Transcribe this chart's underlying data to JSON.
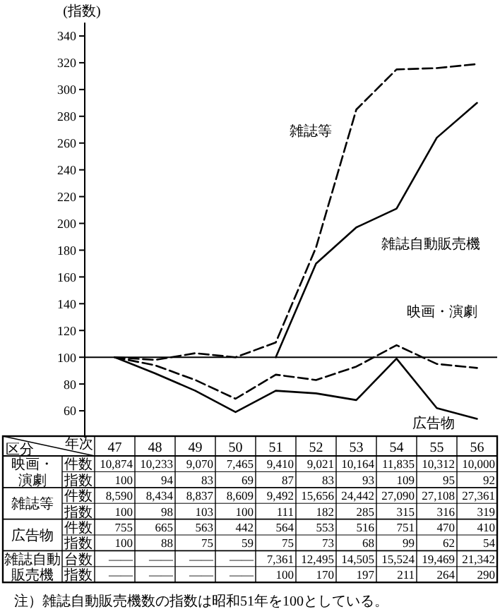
{
  "chart_data": [
    {
      "type": "line",
      "ylabel": "(指数)",
      "categories": [
        "47",
        "48",
        "49",
        "50",
        "51",
        "52",
        "53",
        "54",
        "55",
        "56"
      ],
      "series": [
        {
          "name": "映画・演劇",
          "color": "#000000",
          "line_style": "dashed",
          "values": [
            100,
            94,
            83,
            69,
            87,
            83,
            93,
            109,
            95,
            92
          ]
        },
        {
          "name": "雑誌等",
          "color": "#000000",
          "line_style": "dashed",
          "values": [
            100,
            98,
            103,
            100,
            111,
            182,
            285,
            315,
            316,
            319
          ]
        },
        {
          "name": "広告物",
          "color": "#000000",
          "line_style": "solid",
          "values": [
            100,
            88,
            75,
            59,
            75,
            73,
            68,
            99,
            62,
            54
          ]
        },
        {
          "name": "雑誌自動販売機",
          "color": "#000000",
          "line_style": "solid",
          "values": [
            null,
            null,
            null,
            null,
            100,
            170,
            197,
            211,
            264,
            290
          ],
          "value_labels": [
            "——",
            "——",
            "——",
            "——",
            "100",
            "170",
            "197",
            "211",
            "264",
            "290"
          ]
        }
      ],
      "ylim": [
        40,
        350
      ],
      "yticks": [
        60,
        80,
        100,
        120,
        140,
        160,
        180,
        200,
        220,
        240,
        260,
        280,
        300,
        320,
        340
      ],
      "ref_lines": [
        {
          "axis": "y",
          "value": 100
        }
      ],
      "data_labels": true,
      "grid": false,
      "legend": false,
      "marker": "none"
    },
    {
      "type": "other",
      "annotations": [
        "区分",
        "年次",
        "映画・演劇",
        "件数",
        "10,874",
        "10,233",
        "9,070",
        "7,465",
        "9,410",
        "9,021",
        "10,164",
        "11,835",
        "10,312",
        "10,000",
        "雑誌等",
        "件数",
        "8,590",
        "8,434",
        "8,837",
        "8,609",
        "9,492",
        "15,656",
        "24,442",
        "27,090",
        "27,108",
        "27,361",
        "広告物",
        "件数",
        "755",
        "665",
        "563",
        "442",
        "564",
        "553",
        "516",
        "751",
        "470",
        "410",
        "雑誌自動販売機",
        "台数",
        "——",
        "——",
        "——",
        "——",
        "7,361",
        "12,495",
        "14,505",
        "15,524",
        "19,469",
        "21,342",
        "指数",
        "注）雑誌自動販売機数の指数は昭和51年を100としている。"
      ]
    }
  ]
}
